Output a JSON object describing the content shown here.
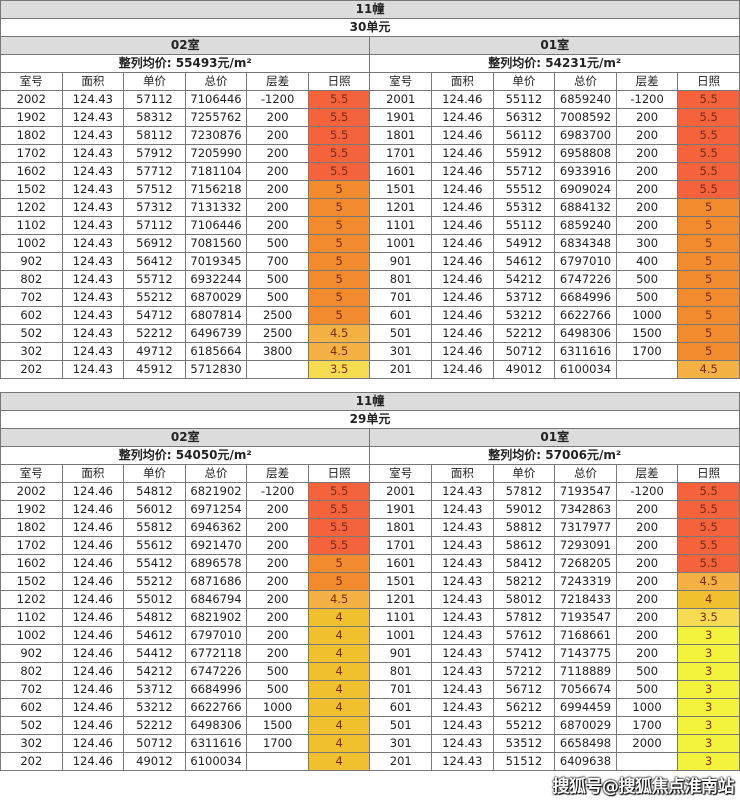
{
  "sunlight_colors": {
    "5.5": "#f4633c",
    "5": "#f28b2e",
    "4.5": "#f5b244",
    "4": "#f0c02e",
    "3.5": "#f7dc52",
    "3": "#f3f23c"
  },
  "columns": [
    "室号",
    "面积",
    "单价",
    "总价",
    "层差",
    "日照"
  ],
  "watermark": "搜狐号@搜狐焦点淮南站",
  "tables": [
    {
      "building": "11幢",
      "unit": "30单元",
      "sides": [
        {
          "room": "02室",
          "avg": "整列均价: 55493元/m²",
          "rows": [
            [
              "2002",
              "124.43",
              "57112",
              "7106446",
              "-1200",
              "5.5"
            ],
            [
              "1902",
              "124.43",
              "58312",
              "7255762",
              "200",
              "5.5"
            ],
            [
              "1802",
              "124.43",
              "58112",
              "7230876",
              "200",
              "5.5"
            ],
            [
              "1702",
              "124.43",
              "57912",
              "7205990",
              "200",
              "5.5"
            ],
            [
              "1602",
              "124.43",
              "57712",
              "7181104",
              "200",
              "5.5"
            ],
            [
              "1502",
              "124.43",
              "57512",
              "7156218",
              "200",
              "5"
            ],
            [
              "1202",
              "124.43",
              "57312",
              "7131332",
              "200",
              "5"
            ],
            [
              "1102",
              "124.43",
              "57112",
              "7106446",
              "200",
              "5"
            ],
            [
              "1002",
              "124.43",
              "56912",
              "7081560",
              "500",
              "5"
            ],
            [
              "902",
              "124.43",
              "56412",
              "7019345",
              "700",
              "5"
            ],
            [
              "802",
              "124.43",
              "55712",
              "6932244",
              "500",
              "5"
            ],
            [
              "702",
              "124.43",
              "55212",
              "6870029",
              "500",
              "5"
            ],
            [
              "602",
              "124.43",
              "54712",
              "6807814",
              "2500",
              "5"
            ],
            [
              "502",
              "124.43",
              "52212",
              "6496739",
              "2500",
              "4.5"
            ],
            [
              "302",
              "124.43",
              "49712",
              "6185664",
              "3800",
              "4.5"
            ],
            [
              "202",
              "124.43",
              "45912",
              "5712830",
              "",
              "3.5"
            ]
          ]
        },
        {
          "room": "01室",
          "avg": "整列均价: 54231元/m²",
          "rows": [
            [
              "2001",
              "124.46",
              "55112",
              "6859240",
              "-1200",
              "5.5"
            ],
            [
              "1901",
              "124.46",
              "56312",
              "7008592",
              "200",
              "5.5"
            ],
            [
              "1801",
              "124.46",
              "56112",
              "6983700",
              "200",
              "5.5"
            ],
            [
              "1701",
              "124.46",
              "55912",
              "6958808",
              "200",
              "5.5"
            ],
            [
              "1601",
              "124.46",
              "55712",
              "6933916",
              "200",
              "5.5"
            ],
            [
              "1501",
              "124.46",
              "55512",
              "6909024",
              "200",
              "5.5"
            ],
            [
              "1201",
              "124.46",
              "55312",
              "6884132",
              "200",
              "5"
            ],
            [
              "1101",
              "124.46",
              "55112",
              "6859240",
              "200",
              "5"
            ],
            [
              "1001",
              "124.46",
              "54912",
              "6834348",
              "300",
              "5"
            ],
            [
              "901",
              "124.46",
              "54612",
              "6797010",
              "400",
              "5"
            ],
            [
              "801",
              "124.46",
              "54212",
              "6747226",
              "500",
              "5"
            ],
            [
              "701",
              "124.46",
              "53712",
              "6684996",
              "500",
              "5"
            ],
            [
              "601",
              "124.46",
              "53212",
              "6622766",
              "1000",
              "5"
            ],
            [
              "501",
              "124.46",
              "52212",
              "6498306",
              "1500",
              "5"
            ],
            [
              "301",
              "124.46",
              "50712",
              "6311616",
              "1700",
              "5"
            ],
            [
              "201",
              "124.46",
              "49012",
              "6100034",
              "",
              "4.5"
            ]
          ]
        }
      ]
    },
    {
      "building": "11幢",
      "unit": "29单元",
      "sides": [
        {
          "room": "02室",
          "avg": "整列均价: 54050元/m²",
          "rows": [
            [
              "2002",
              "124.46",
              "54812",
              "6821902",
              "-1200",
              "5.5"
            ],
            [
              "1902",
              "124.46",
              "56012",
              "6971254",
              "200",
              "5.5"
            ],
            [
              "1802",
              "124.46",
              "55812",
              "6946362",
              "200",
              "5.5"
            ],
            [
              "1702",
              "124.46",
              "55612",
              "6921470",
              "200",
              "5.5"
            ],
            [
              "1602",
              "124.46",
              "55412",
              "6896578",
              "200",
              "5"
            ],
            [
              "1502",
              "124.46",
              "55212",
              "6871686",
              "200",
              "5"
            ],
            [
              "1202",
              "124.46",
              "55012",
              "6846794",
              "200",
              "4.5"
            ],
            [
              "1102",
              "124.46",
              "54812",
              "6821902",
              "200",
              "4"
            ],
            [
              "1002",
              "124.46",
              "54612",
              "6797010",
              "200",
              "4"
            ],
            [
              "902",
              "124.46",
              "54412",
              "6772118",
              "200",
              "4"
            ],
            [
              "802",
              "124.46",
              "54212",
              "6747226",
              "500",
              "4"
            ],
            [
              "702",
              "124.46",
              "53712",
              "6684996",
              "500",
              "4"
            ],
            [
              "602",
              "124.46",
              "53212",
              "6622766",
              "1000",
              "4"
            ],
            [
              "502",
              "124.46",
              "52212",
              "6498306",
              "1500",
              "4"
            ],
            [
              "302",
              "124.46",
              "50712",
              "6311616",
              "1700",
              "4"
            ],
            [
              "202",
              "124.46",
              "49012",
              "6100034",
              "",
              "4"
            ]
          ]
        },
        {
          "room": "01室",
          "avg": "整列均价: 57006元/m²",
          "rows": [
            [
              "2001",
              "124.43",
              "57812",
              "7193547",
              "-1200",
              "5.5"
            ],
            [
              "1901",
              "124.43",
              "59012",
              "7342863",
              "200",
              "5.5"
            ],
            [
              "1801",
              "124.43",
              "58812",
              "7317977",
              "200",
              "5.5"
            ],
            [
              "1701",
              "124.43",
              "58612",
              "7293091",
              "200",
              "5.5"
            ],
            [
              "1601",
              "124.43",
              "58412",
              "7268205",
              "200",
              "5.5"
            ],
            [
              "1501",
              "124.43",
              "58212",
              "7243319",
              "200",
              "4.5"
            ],
            [
              "1201",
              "124.43",
              "58012",
              "7218433",
              "200",
              "4"
            ],
            [
              "1101",
              "124.43",
              "57812",
              "7193547",
              "200",
              "3.5"
            ],
            [
              "1001",
              "124.43",
              "57612",
              "7168661",
              "200",
              "3"
            ],
            [
              "901",
              "124.43",
              "57412",
              "7143775",
              "200",
              "3"
            ],
            [
              "801",
              "124.43",
              "57212",
              "7118889",
              "500",
              "3"
            ],
            [
              "701",
              "124.43",
              "56712",
              "7056674",
              "500",
              "3"
            ],
            [
              "601",
              "124.43",
              "56212",
              "6994459",
              "1000",
              "3"
            ],
            [
              "501",
              "124.43",
              "55212",
              "6870029",
              "1700",
              "3"
            ],
            [
              "301",
              "124.43",
              "53512",
              "6658498",
              "2000",
              "3"
            ],
            [
              "201",
              "124.43",
              "51512",
              "6409638",
              "",
              "3"
            ]
          ]
        }
      ]
    }
  ]
}
